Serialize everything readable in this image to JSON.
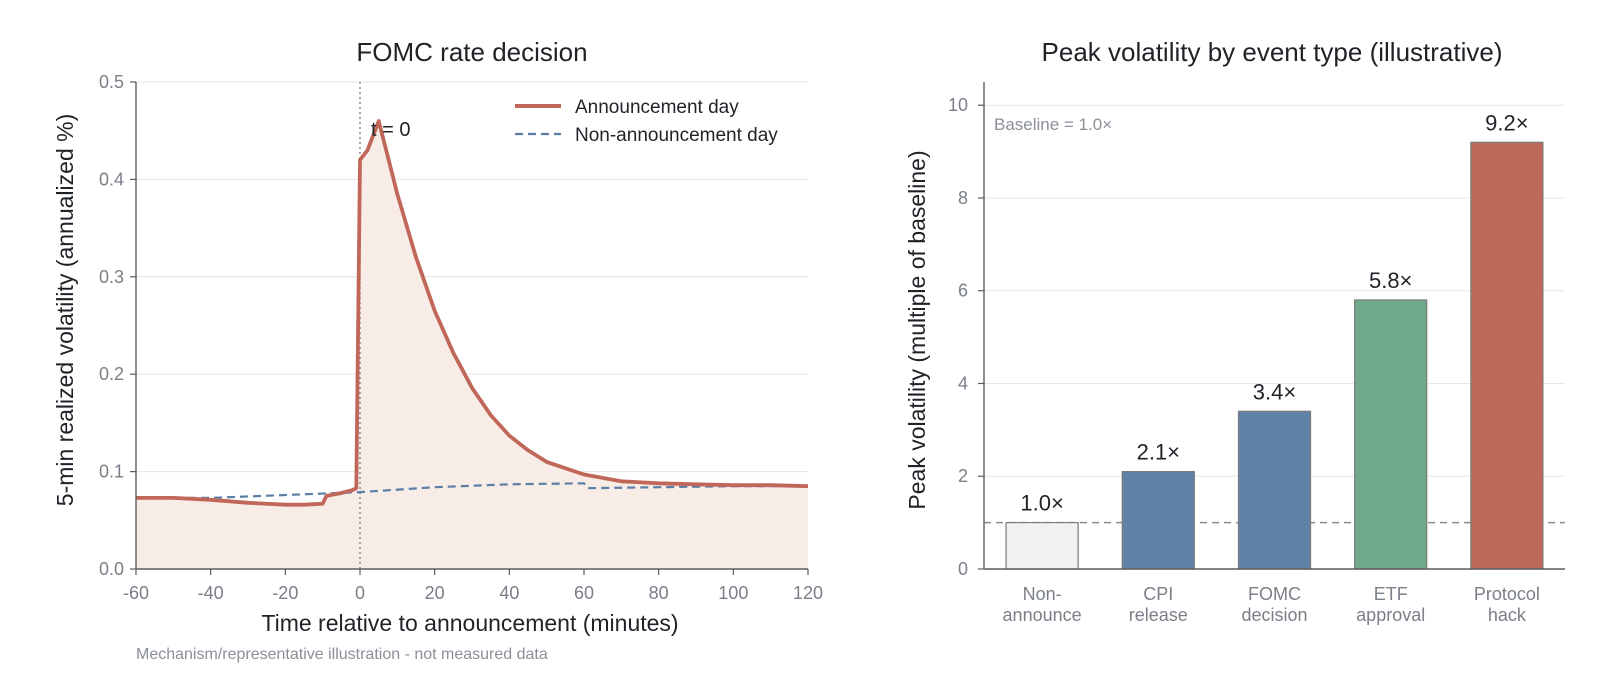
{
  "chart_data": [
    {
      "type": "line",
      "title": "FOMC rate decision",
      "xlabel": "Time relative to announcement (minutes)",
      "ylabel": "5-min realized volatility (annualized %)",
      "xlim": [
        -60,
        120
      ],
      "ylim": [
        0,
        0.5
      ],
      "xticks": [
        -60,
        -40,
        -20,
        0,
        20,
        40,
        60,
        80,
        100,
        120
      ],
      "yticks": [
        0.0,
        0.1,
        0.2,
        0.3,
        0.4,
        0.5
      ],
      "xtick_labels": [
        "-60",
        "-40",
        "-20",
        "0",
        "20",
        "40",
        "60",
        "80",
        "100",
        "120"
      ],
      "ytick_labels": [
        "0.0",
        "0.1",
        "0.2",
        "0.3",
        "0.4",
        "0.5"
      ],
      "grid": "horizontal",
      "legend_position": "top-right",
      "annotation": "t = 0",
      "vline_x": 0,
      "series": [
        {
          "name": "Announcement day",
          "style": "solid",
          "color": "#c0675a",
          "fill": "#f8ece7",
          "x": [
            -60,
            -50,
            -40,
            -30,
            -20,
            -15,
            -10,
            -9,
            -5,
            -2,
            -1,
            0,
            2,
            5,
            8,
            10,
            15,
            20,
            25,
            30,
            35,
            40,
            45,
            50,
            60,
            70,
            80,
            90,
            100,
            110,
            120
          ],
          "y": [
            0.073,
            0.073,
            0.071,
            0.068,
            0.066,
            0.066,
            0.067,
            0.075,
            0.078,
            0.081,
            0.083,
            0.42,
            0.43,
            0.46,
            0.415,
            0.385,
            0.32,
            0.265,
            0.222,
            0.186,
            0.158,
            0.137,
            0.122,
            0.11,
            0.097,
            0.09,
            0.088,
            0.087,
            0.086,
            0.086,
            0.085
          ]
        },
        {
          "name": "Non-announcement day",
          "style": "dashed",
          "color": "#5a7ea6",
          "x": [
            -60,
            -40,
            -20,
            0,
            20,
            40,
            60,
            61,
            80,
            100,
            120
          ],
          "y": [
            0.073,
            0.073,
            0.076,
            0.079,
            0.084,
            0.087,
            0.088,
            0.083,
            0.084,
            0.085,
            0.085
          ]
        }
      ]
    },
    {
      "type": "bar",
      "title": "Peak volatility by event type (illustrative)",
      "xlabel": "",
      "ylabel": "Peak volatility (multiple of baseline)",
      "ylim": [
        0,
        10.5
      ],
      "yticks": [
        0,
        2,
        4,
        6,
        8,
        10
      ],
      "ytick_labels": [
        "0",
        "2",
        "4",
        "6",
        "8",
        "10"
      ],
      "grid": "horizontal",
      "categories": [
        [
          "Non-",
          "announce"
        ],
        [
          "CPI",
          "release"
        ],
        [
          "FOMC",
          "decision"
        ],
        [
          "ETF",
          "approval"
        ],
        [
          "Protocol",
          "hack"
        ]
      ],
      "values": [
        1.0,
        2.1,
        3.4,
        5.8,
        9.2
      ],
      "value_labels": [
        "1.0×",
        "2.1×",
        "3.4×",
        "5.8×",
        "9.2×"
      ],
      "colors": [
        "#f2f2f2",
        "#5f82a8",
        "#5f82a8",
        "#6faa8b",
        "#bd6a5b"
      ],
      "baseline_value": 1.0,
      "baseline_label": "Baseline = 1.0×"
    }
  ],
  "footnote": "Mechanism/representative illustration - not measured data"
}
